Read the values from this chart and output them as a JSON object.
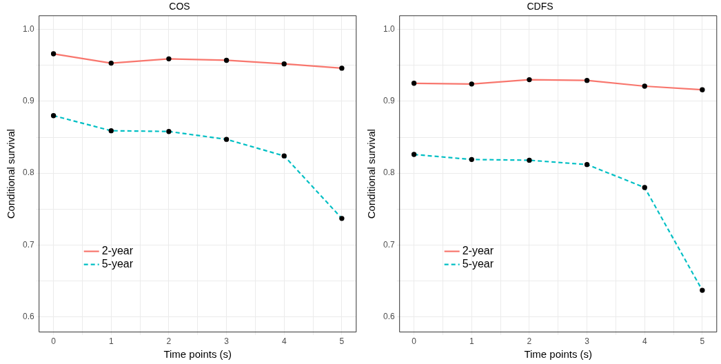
{
  "chart_data": [
    {
      "type": "line",
      "title": "COS",
      "xlabel": "Time points (s)",
      "ylabel": "Conditional survival",
      "x": [
        0,
        1,
        2,
        3,
        4,
        5
      ],
      "series": [
        {
          "name": "2-year",
          "color": "#f8766d",
          "line_style": "solid",
          "values": [
            0.966,
            0.953,
            0.959,
            0.957,
            0.952,
            0.946
          ]
        },
        {
          "name": "5-year",
          "color": "#00bfc4",
          "line_style": "dashed",
          "values": [
            0.88,
            0.859,
            0.858,
            0.847,
            0.824,
            0.737
          ]
        }
      ],
      "xlim": [
        -0.25,
        5.25
      ],
      "xticks": [
        0,
        {
          "value": 0.5,
          "label": null
        },
        1,
        {
          "value": 1.5,
          "label": null
        },
        2,
        {
          "value": 2.5,
          "label": null
        },
        3,
        {
          "value": 3.5,
          "label": null
        },
        4,
        {
          "value": 4.5,
          "label": null
        },
        5
      ],
      "ylim": [
        0.579,
        1.019
      ],
      "yticks": [
        0.6,
        {
          "value": 0.65,
          "label": null
        },
        0.7,
        {
          "value": 0.75,
          "label": null
        },
        0.8,
        {
          "value": 0.85,
          "label": null
        },
        0.9,
        {
          "value": 0.95,
          "label": null
        },
        {
          "value": 1,
          "label": "1.0"
        }
      ],
      "grid": true,
      "legend": "bottom left",
      "marker": "circle"
    },
    {
      "type": "line",
      "title": "CDFS",
      "xlabel": "Time points (s)",
      "ylabel": "Conditional survival",
      "x": [
        0,
        1,
        2,
        3,
        4,
        5
      ],
      "series": [
        {
          "name": "2-year",
          "color": "#f8766d",
          "line_style": "solid",
          "values": [
            0.925,
            0.924,
            0.93,
            0.929,
            0.921,
            0.916
          ]
        },
        {
          "name": "5-year",
          "color": "#00bfc4",
          "line_style": "dashed",
          "values": [
            0.826,
            0.819,
            0.818,
            0.812,
            0.78,
            0.637
          ]
        }
      ],
      "xlim": [
        -0.25,
        5.25
      ],
      "xticks": [
        0,
        {
          "value": 0.5,
          "label": null
        },
        1,
        {
          "value": 1.5,
          "label": null
        },
        2,
        {
          "value": 2.5,
          "label": null
        },
        3,
        {
          "value": 3.5,
          "label": null
        },
        4,
        {
          "value": 4.5,
          "label": null
        },
        5
      ],
      "ylim": [
        0.579,
        1.019
      ],
      "yticks": [
        0.6,
        {
          "value": 0.65,
          "label": null
        },
        0.7,
        {
          "value": 0.75,
          "label": null
        },
        0.8,
        {
          "value": 0.85,
          "label": null
        },
        0.9,
        {
          "value": 0.95,
          "label": null
        },
        {
          "value": 1,
          "label": "1.0"
        }
      ],
      "grid": true,
      "legend": "bottom left",
      "marker": "circle"
    }
  ]
}
